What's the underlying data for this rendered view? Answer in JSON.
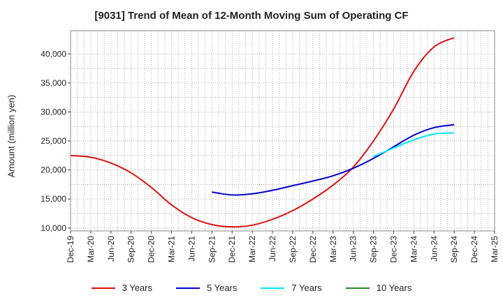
{
  "chart_data": {
    "type": "line",
    "title": "[9031]  Trend of Mean of 12-Month Moving Sum of Operating CF",
    "xlabel": "",
    "ylabel": "Amount (million yen)",
    "ylim": [
      9500,
      44000
    ],
    "yticks": [
      10000,
      15000,
      20000,
      25000,
      30000,
      35000,
      40000
    ],
    "ytick_labels": [
      "10,000",
      "15,000",
      "20,000",
      "25,000",
      "30,000",
      "35,000",
      "40,000"
    ],
    "categories": [
      "Dec-19",
      "Mar-20",
      "Jun-20",
      "Sep-20",
      "Dec-20",
      "Mar-21",
      "Jun-21",
      "Sep-21",
      "Dec-21",
      "Mar-22",
      "Jun-22",
      "Sep-22",
      "Dec-22",
      "Mar-23",
      "Jun-23",
      "Sep-23",
      "Dec-23",
      "Mar-24",
      "Jun-24",
      "Sep-24",
      "Dec-24",
      "Mar-25"
    ],
    "grid": true,
    "legend_position": "bottom",
    "series": [
      {
        "name": "3 Years",
        "color": "#dd1111",
        "values": [
          22500,
          22200,
          21200,
          19500,
          17000,
          14000,
          11800,
          10600,
          10200,
          10500,
          11500,
          13000,
          15000,
          17400,
          20500,
          25000,
          30500,
          37000,
          41200,
          42800,
          null,
          null
        ]
      },
      {
        "name": "5 Years",
        "color": "#0000cc",
        "values": [
          null,
          null,
          null,
          null,
          null,
          null,
          null,
          16200,
          15700,
          15900,
          16500,
          17300,
          18100,
          19000,
          20300,
          22000,
          24000,
          26000,
          27300,
          27800,
          null,
          null
        ]
      },
      {
        "name": "7 Years",
        "color": "#00e5ff",
        "values": [
          null,
          null,
          null,
          null,
          null,
          null,
          null,
          null,
          null,
          null,
          null,
          null,
          null,
          null,
          null,
          22300,
          23800,
          25200,
          26200,
          26400,
          null,
          null
        ]
      },
      {
        "name": "10 Years",
        "color": "#228b22",
        "values": [
          null,
          null,
          null,
          null,
          null,
          null,
          null,
          null,
          null,
          null,
          null,
          null,
          null,
          null,
          null,
          null,
          null,
          null,
          null,
          null,
          null,
          null
        ]
      }
    ]
  }
}
